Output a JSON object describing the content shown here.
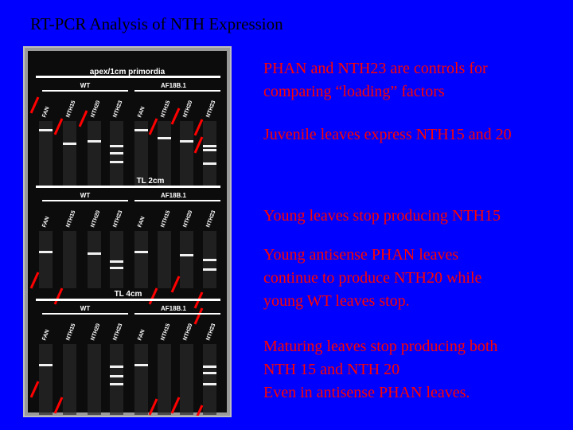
{
  "title": "RT-PCR Analysis of NTH Expression",
  "gel": {
    "panels": [
      {
        "heading": "apex/1cm primordia",
        "groups": [
          "WT",
          "AF18B.1"
        ],
        "lanes": [
          "FAN",
          "NTH15",
          "NTH20",
          "NTH23",
          "FAN",
          "NTH15",
          "NTH20",
          "NTH23"
        ]
      },
      {
        "heading": "TL 2cm",
        "groups": [
          "WT",
          "AF18B.1"
        ],
        "lanes": [
          "FAN",
          "NTH15",
          "NTH20",
          "NTH23",
          "FAN",
          "NTH15",
          "NTH20",
          "NTH23"
        ]
      },
      {
        "heading": "TL 4cm",
        "groups": [
          "WT",
          "AF18B.1"
        ],
        "lanes": [
          "FAN",
          "NTH15",
          "NTH20",
          "NTH23",
          "FAN",
          "NTH15",
          "NTH20",
          "NTH23"
        ]
      }
    ]
  },
  "notes": [
    {
      "lines": [
        "PHAN and NTH23 are controls for",
        "comparing “loading” factors"
      ]
    },
    {
      "lines": [
        "Juvenile leaves express NTH15 and 20"
      ]
    },
    {
      "lines": [
        "Young leaves stop producing NTH15"
      ]
    },
    {
      "lines": [
        "Young antisense PHAN leaves",
        "continue to produce NTH20 while",
        "young WT leaves stop."
      ]
    },
    {
      "lines": [
        "Maturing leaves stop producing both",
        "NTH 15 and NTH 20",
        "Even in antisense PHAN leaves."
      ]
    }
  ],
  "colors": {
    "background": "#0000ff",
    "title": "#000000",
    "notes": "#ff0000",
    "arrows": "#ff0000",
    "gel": "#9a9a9a"
  }
}
